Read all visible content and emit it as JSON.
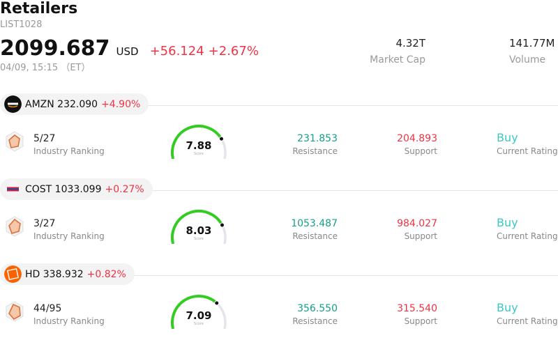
{
  "header": {
    "title": "Retailers",
    "code": "LIST1028",
    "price": "2099.687",
    "currency": "USD",
    "change": "+56.124",
    "change_pct": "+2.67%",
    "timestamp": "04/09, 15:15 （ET）"
  },
  "stats": {
    "market_cap": {
      "value": "4.32T",
      "label": "Market Cap"
    },
    "volume": {
      "value": "141.77M",
      "label": "Volume"
    }
  },
  "stocks": [
    {
      "symbol_price": "AMZN 232.090",
      "change_pct": "+4.90%",
      "logo_icon": "amazon-logo-icon",
      "rank": "5/27",
      "rank_label": "Industry Ranking",
      "score": "7.88",
      "score_value": 7.88,
      "score_label": "Score",
      "resistance": "231.853",
      "resistance_label": "Resistance",
      "support": "204.893",
      "support_label": "Support",
      "rating": "Buy",
      "rating_label": "Current Rating"
    },
    {
      "symbol_price": "COST 1033.099",
      "change_pct": "+0.27%",
      "logo_icon": "costco-logo-icon",
      "rank": "3/27",
      "rank_label": "Industry Ranking",
      "score": "8.03",
      "score_value": 8.03,
      "score_label": "Score",
      "resistance": "1053.487",
      "resistance_label": "Resistance",
      "support": "984.027",
      "support_label": "Support",
      "rating": "Buy",
      "rating_label": "Current Rating"
    },
    {
      "symbol_price": "HD 338.932",
      "change_pct": "+0.82%",
      "logo_icon": "home-depot-logo-icon",
      "rank": "44/95",
      "rank_label": "Industry Ranking",
      "score": "7.09",
      "score_value": 7.09,
      "score_label": "Score",
      "resistance": "356.550",
      "resistance_label": "Resistance",
      "support": "315.540",
      "support_label": "Support",
      "rating": "Buy",
      "rating_label": "Current Rating"
    }
  ],
  "colors": {
    "up": "#ee3344",
    "resistance": "#14a088",
    "rating": "#3cc8c0",
    "gauge_fill": "#33cc22",
    "gauge_track": "#e4e4ec"
  }
}
